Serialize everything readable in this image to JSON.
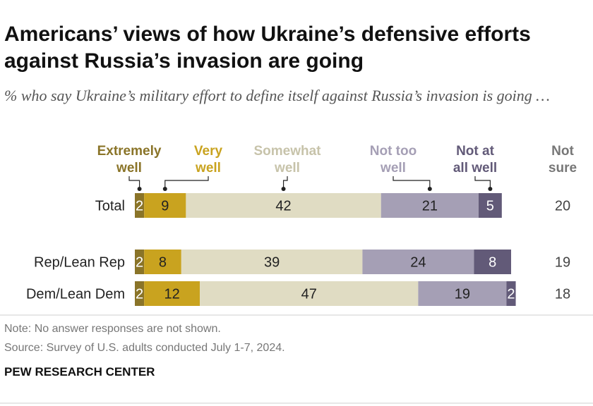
{
  "title": "Americans’ views of how Ukraine’s defensive efforts against Russia’s invasion are going",
  "subtitle": "% who say Ukraine’s military effort to define itself against Russia’s invasion is going …",
  "chart_data": {
    "type": "bar",
    "orientation": "horizontal",
    "stacked": true,
    "categories": [
      "Total",
      "Rep/Lean Rep",
      "Dem/Lean Dem"
    ],
    "series": [
      {
        "name": "Extremely well",
        "label_lines": [
          "Extremely",
          "well"
        ],
        "color": "#8a7428",
        "values": [
          2,
          2,
          2
        ]
      },
      {
        "name": "Very well",
        "label_lines": [
          "Very",
          "well"
        ],
        "color": "#c9a31f",
        "values": [
          9,
          8,
          12
        ]
      },
      {
        "name": "Somewhat well",
        "label_lines": [
          "Somewhat",
          "well"
        ],
        "color": "#e0dcc3",
        "values": [
          42,
          39,
          47
        ]
      },
      {
        "name": "Not too well",
        "label_lines": [
          "Not too",
          "well"
        ],
        "color": "#a59fb5",
        "values": [
          21,
          24,
          19
        ]
      },
      {
        "name": "Not at all well",
        "label_lines": [
          "Not at",
          "all well"
        ],
        "color": "#625a78",
        "values": [
          5,
          8,
          2
        ]
      }
    ],
    "extra_column": {
      "name": "Not sure",
      "label_lines": [
        "Not",
        "sure"
      ],
      "values": [
        20,
        19,
        18
      ]
    },
    "legend_colors": [
      "#8a7428",
      "#c9a31f",
      "#c7c3aa",
      "#a59fb5",
      "#625a78",
      "#777777"
    ],
    "xlim": [
      0,
      100
    ]
  },
  "notes": {
    "note": "Note: No answer responses are not shown.",
    "source": "Source: Survey of U.S. adults conducted July 1-7, 2024."
  },
  "org": "PEW RESEARCH CENTER"
}
